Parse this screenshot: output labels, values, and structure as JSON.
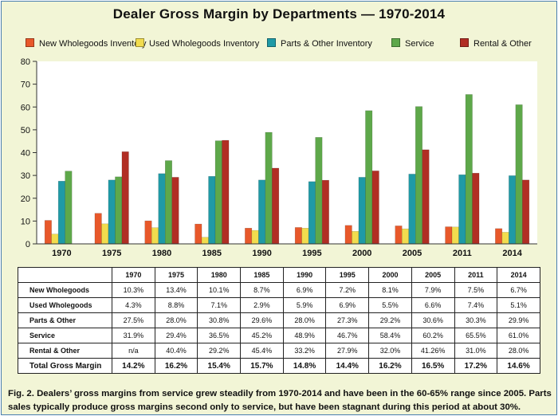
{
  "title": "Dealer Gross Margin by Departments — 1970-2014",
  "caption": "Fig. 2. Dealers’ gross margins from service grew steadily from 1970-2014 and have been in the 60-65% range since 2005. Parts sales typically produce gross margins second only to service, but have been stagnant during this period at about 30%.",
  "colors": {
    "new_wholegoods": "#e8582a",
    "used_wholegoods": "#f1dc4e",
    "parts_other": "#1f9aa6",
    "service": "#5ea84a",
    "rental_other": "#b12e24"
  },
  "chart_data": {
    "type": "bar",
    "categories": [
      "1970",
      "1975",
      "1980",
      "1985",
      "1990",
      "1995",
      "2000",
      "2005",
      "2011",
      "2014"
    ],
    "series": [
      {
        "name": "New Wholegoods Inventory",
        "values": [
          10.3,
          13.4,
          10.1,
          8.7,
          6.9,
          7.2,
          8.1,
          7.9,
          7.5,
          6.7
        ]
      },
      {
        "name": "Used Wholegoods Inventory",
        "values": [
          4.3,
          8.8,
          7.1,
          2.9,
          5.9,
          6.9,
          5.5,
          6.6,
          7.4,
          5.1
        ]
      },
      {
        "name": "Parts & Other Inventory",
        "values": [
          27.5,
          28.0,
          30.8,
          29.6,
          28.0,
          27.3,
          29.2,
          30.6,
          30.3,
          29.9
        ]
      },
      {
        "name": "Service",
        "values": [
          31.9,
          29.4,
          36.5,
          45.2,
          48.9,
          46.7,
          58.4,
          60.2,
          65.5,
          61.0
        ]
      },
      {
        "name": "Rental & Other",
        "values": [
          null,
          40.4,
          29.2,
          45.4,
          33.2,
          27.9,
          32.0,
          41.26,
          31.0,
          28.0
        ]
      }
    ],
    "ylim": [
      0,
      80
    ],
    "yticks": [
      "0",
      "10",
      "20",
      "30",
      "40",
      "50",
      "60",
      "70",
      "80"
    ],
    "grid": false,
    "legend": "top"
  },
  "table": {
    "header": [
      "",
      "1970",
      "1975",
      "1980",
      "1985",
      "1990",
      "1995",
      "2000",
      "2005",
      "2011",
      "2014"
    ],
    "rows": [
      {
        "label": "New Wholegoods",
        "cells": [
          "10.3%",
          "13.4%",
          "10.1%",
          "8.7%",
          "6.9%",
          "7.2%",
          "8.1%",
          "7.9%",
          "7.5%",
          "6.7%"
        ]
      },
      {
        "label": "Used Wholegoods",
        "cells": [
          "4.3%",
          "8.8%",
          "7.1%",
          "2.9%",
          "5.9%",
          "6.9%",
          "5.5%",
          "6.6%",
          "7.4%",
          "5.1%"
        ]
      },
      {
        "label": "Parts & Other",
        "cells": [
          "27.5%",
          "28.0%",
          "30.8%",
          "29.6%",
          "28.0%",
          "27.3%",
          "29.2%",
          "30.6%",
          "30.3%",
          "29.9%"
        ]
      },
      {
        "label": "Service",
        "cells": [
          "31.9%",
          "29.4%",
          "36.5%",
          "45.2%",
          "48.9%",
          "46.7%",
          "58.4%",
          "60.2%",
          "65.5%",
          "61.0%"
        ]
      },
      {
        "label": "Rental & Other",
        "cells": [
          "n/a",
          "40.4%",
          "29.2%",
          "45.4%",
          "33.2%",
          "27.9%",
          "32.0%",
          "41.26%",
          "31.0%",
          "28.0%"
        ]
      },
      {
        "label": "Total Gross Margin",
        "cells": [
          "14.2%",
          "16.2%",
          "15.4%",
          "15.7%",
          "14.8%",
          "14.4%",
          "16.2%",
          "16.5%",
          "17.2%",
          "14.6%"
        ]
      }
    ]
  }
}
